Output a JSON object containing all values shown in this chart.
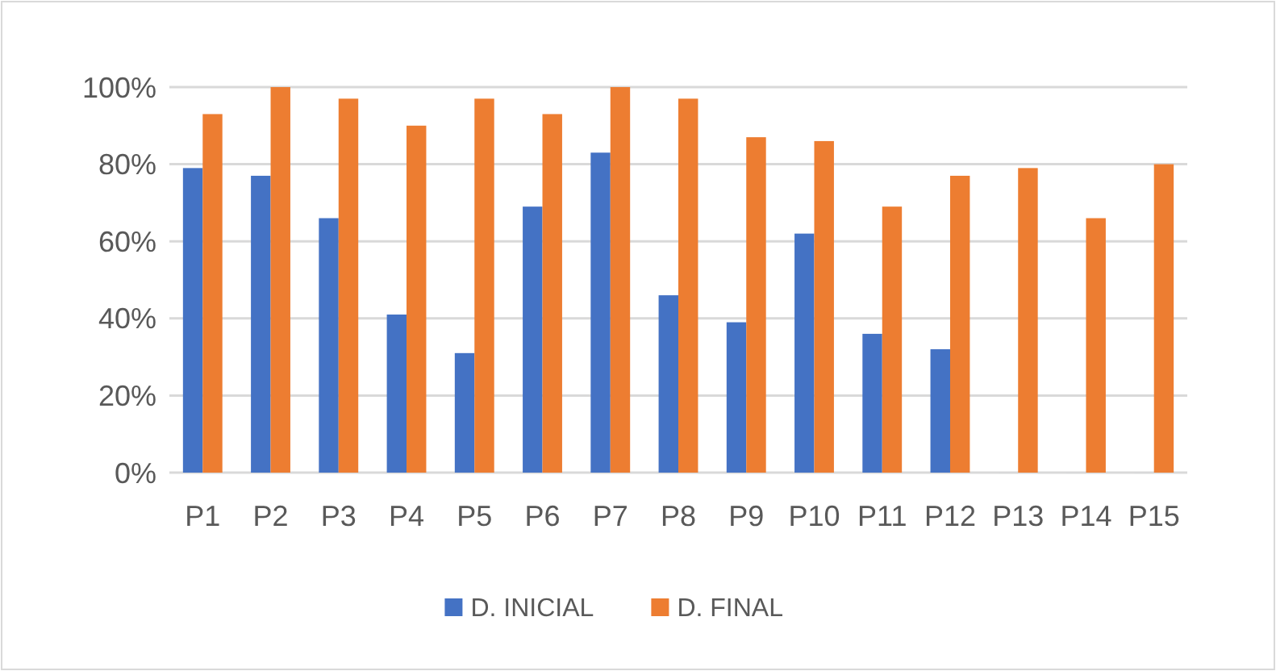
{
  "chart_data": {
    "type": "bar",
    "categories": [
      "P1",
      "P2",
      "P3",
      "P4",
      "P5",
      "P6",
      "P7",
      "P8",
      "P9",
      "P10",
      "P11",
      "P12",
      "P13",
      "P14",
      "P15"
    ],
    "series": [
      {
        "name": "D. INICIAL",
        "color": "#4472c4",
        "values": [
          79,
          77,
          66,
          41,
          31,
          69,
          83,
          46,
          39,
          62,
          36,
          32,
          0,
          0,
          0
        ]
      },
      {
        "name": "D. FINAL",
        "color": "#ed7d31",
        "values": [
          93,
          100,
          97,
          90,
          97,
          93,
          100,
          97,
          87,
          86,
          69,
          77,
          79,
          66,
          80
        ]
      }
    ],
    "ylim": [
      0,
      100
    ],
    "yticks": [
      {
        "value": 0,
        "label": "0%"
      },
      {
        "value": 20,
        "label": "20%"
      },
      {
        "value": 40,
        "label": "40%"
      },
      {
        "value": 60,
        "label": "60%"
      },
      {
        "value": 80,
        "label": "80%"
      },
      {
        "value": 100,
        "label": "100%"
      }
    ],
    "grid": true,
    "legend": "bottom"
  }
}
